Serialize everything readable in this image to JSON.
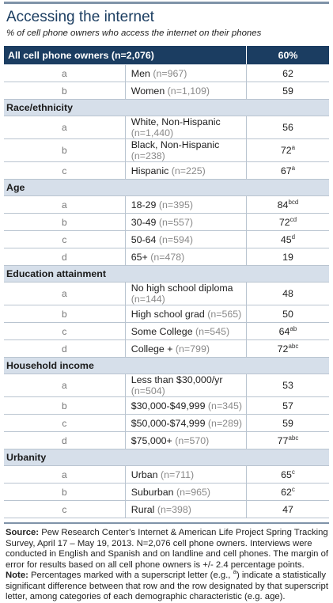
{
  "title": "Accessing the internet",
  "subtitle": "% of cell phone owners who access the internet on their phones",
  "header": {
    "label": "All cell phone owners (n=2,076)",
    "value": "60%"
  },
  "sections": [
    {
      "name": "",
      "rows": [
        {
          "letter": "a",
          "label": "Men",
          "n": "(n=967)",
          "value": "62",
          "sup": ""
        },
        {
          "letter": "b",
          "label": "Women",
          "n": "(n=1,109)",
          "value": "59",
          "sup": ""
        }
      ]
    },
    {
      "name": "Race/ethnicity",
      "rows": [
        {
          "letter": "a",
          "label": "White, Non-Hispanic",
          "n": "(n=1,440)",
          "value": "56",
          "sup": ""
        },
        {
          "letter": "b",
          "label": "Black, Non-Hispanic",
          "n": "(n=238)",
          "value": "72",
          "sup": "a"
        },
        {
          "letter": "c",
          "label": "Hispanic",
          "n": "(n=225)",
          "value": "67",
          "sup": "a"
        }
      ]
    },
    {
      "name": "Age",
      "rows": [
        {
          "letter": "a",
          "label": "18-29",
          "n": "(n=395)",
          "value": "84",
          "sup": "bcd"
        },
        {
          "letter": "b",
          "label": "30-49",
          "n": "(n=557)",
          "value": "72",
          "sup": "cd"
        },
        {
          "letter": "c",
          "label": "50-64",
          "n": "(n=594)",
          "value": "45",
          "sup": "d"
        },
        {
          "letter": "d",
          "label": "65+",
          "n": "(n=478)",
          "value": "19",
          "sup": ""
        }
      ]
    },
    {
      "name": "Education attainment",
      "rows": [
        {
          "letter": "a",
          "label": "No high school diploma",
          "n": "(n=144)",
          "value": "48",
          "sup": ""
        },
        {
          "letter": "b",
          "label": "High school grad",
          "n": "(n=565)",
          "value": "50",
          "sup": ""
        },
        {
          "letter": "c",
          "label": "Some College",
          "n": "(n=545)",
          "value": "64",
          "sup": "ab"
        },
        {
          "letter": "d",
          "label": "College +",
          "n": "(n=799)",
          "value": "72",
          "sup": "abc"
        }
      ]
    },
    {
      "name": "Household income",
      "rows": [
        {
          "letter": "a",
          "label": "Less than $30,000/yr",
          "n": "(n=504)",
          "value": "53",
          "sup": ""
        },
        {
          "letter": "b",
          "label": "$30,000-$49,999",
          "n": "(n=345)",
          "value": "57",
          "sup": ""
        },
        {
          "letter": "c",
          "label": "$50,000-$74,999",
          "n": "(n=289)",
          "value": "59",
          "sup": ""
        },
        {
          "letter": "d",
          "label": "$75,000+",
          "n": "(n=570)",
          "value": "77",
          "sup": "abc"
        }
      ]
    },
    {
      "name": "Urbanity",
      "rows": [
        {
          "letter": "a",
          "label": "Urban",
          "n": "(n=711)",
          "value": "65",
          "sup": "c"
        },
        {
          "letter": "b",
          "label": "Suburban",
          "n": "(n=965)",
          "value": "62",
          "sup": "c"
        },
        {
          "letter": "c",
          "label": "Rural",
          "n": "(n=398)",
          "value": "47",
          "sup": ""
        }
      ]
    }
  ],
  "footer": {
    "source_label": "Source:",
    "source_text": " Pew Research Center’s Internet & American Life Project Spring Tracking Survey, April 17 – May 19, 2013. N=2,076 cell phone owners. Interviews were conducted in English and Spanish and on landline and cell phones.  The margin of error for results based on all cell phone owners is +/- 2.4 percentage points.",
    "note_label": "Note:",
    "note_text_1": " Percentages marked with a superscript letter (e.g., ",
    "note_sup": "a",
    "note_text_2": ") indicate a statistically significant difference between that row and the row designated by that superscript letter, among categories of each demographic characteristic (e.g. age)."
  },
  "chart_data": {
    "type": "table",
    "title": "Accessing the internet",
    "subtitle": "% of cell phone owners who access the internet on their phones",
    "columns": [
      "",
      "All cell phone owners (n=2,076)",
      "60%"
    ],
    "overall": {
      "label": "All cell phone owners (n=2,076)",
      "value": 60
    },
    "groups": [
      {
        "name": "",
        "categories": [
          "Men",
          "Women"
        ],
        "values": [
          62,
          59
        ]
      },
      {
        "name": "Race/ethnicity",
        "categories": [
          "White, Non-Hispanic",
          "Black, Non-Hispanic",
          "Hispanic"
        ],
        "values": [
          56,
          72,
          67
        ]
      },
      {
        "name": "Age",
        "categories": [
          "18-29",
          "30-49",
          "50-64",
          "65+"
        ],
        "values": [
          84,
          72,
          45,
          19
        ]
      },
      {
        "name": "Education attainment",
        "categories": [
          "No high school diploma",
          "High school grad",
          "Some College",
          "College +"
        ],
        "values": [
          48,
          50,
          64,
          72
        ]
      },
      {
        "name": "Household income",
        "categories": [
          "Less than $30,000/yr",
          "$30,000-$49,999",
          "$50,000-$74,999",
          "$75,000+"
        ],
        "values": [
          53,
          57,
          59,
          77
        ]
      },
      {
        "name": "Urbanity",
        "categories": [
          "Urban",
          "Suburban",
          "Rural"
        ],
        "values": [
          65,
          62,
          47
        ]
      }
    ]
  }
}
